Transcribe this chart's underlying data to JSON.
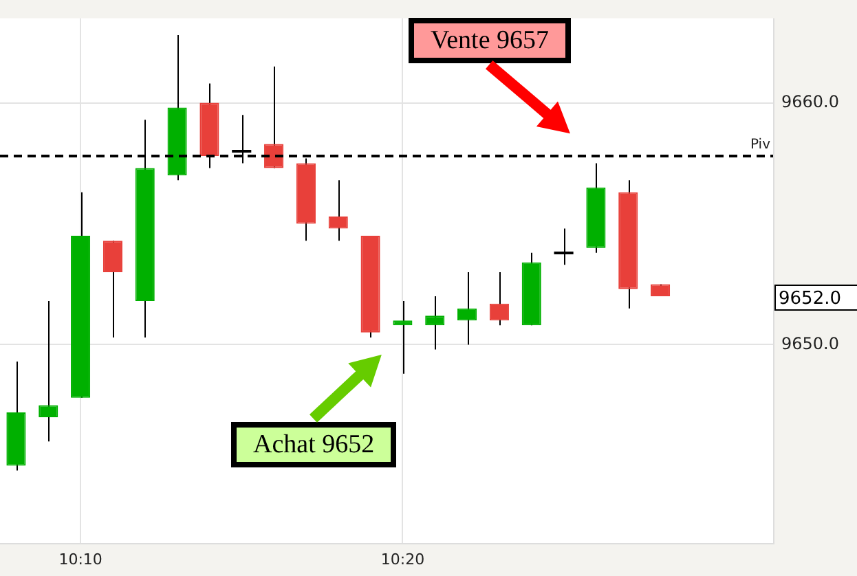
{
  "chart_data": {
    "type": "candlestick",
    "categories": [
      null,
      null,
      "10:10",
      null,
      null,
      null,
      null,
      null,
      null,
      null,
      null,
      null,
      "10:20",
      null,
      null,
      null,
      null,
      null,
      null,
      null,
      null,
      null,
      null,
      null
    ],
    "ohlc": [
      [
        9645.0,
        9649.3,
        9644.8,
        9647.2
      ],
      [
        9647.0,
        9651.8,
        9646.0,
        9647.5
      ],
      [
        9647.8,
        9656.3,
        9647.8,
        9654.5
      ],
      [
        9654.3,
        9654.3,
        9650.3,
        9653.0
      ],
      [
        9651.8,
        9659.3,
        9650.3,
        9657.3
      ],
      [
        9657.0,
        9662.8,
        9656.8,
        9659.8
      ],
      [
        9660.0,
        9660.8,
        9657.3,
        9657.8
      ],
      [
        9658.0,
        9659.5,
        9657.5,
        9658.0
      ],
      [
        9658.3,
        9661.5,
        9657.3,
        9657.3
      ],
      [
        9657.5,
        9657.7,
        9654.3,
        9655.0
      ],
      [
        9655.3,
        9656.8,
        9654.3,
        9654.8
      ],
      [
        9654.5,
        9654.5,
        9650.3,
        9650.5
      ],
      [
        9650.8,
        9651.8,
        9648.8,
        9651.0
      ],
      [
        9650.8,
        9652.0,
        9649.8,
        9651.2
      ],
      [
        9651.0,
        9653.0,
        9650.0,
        9651.5
      ],
      [
        9651.7,
        9653.0,
        9650.8,
        9651.0
      ],
      [
        9650.8,
        9653.8,
        9650.8,
        9653.4
      ],
      [
        9653.8,
        9654.8,
        9653.3,
        9653.8
      ],
      [
        9654.0,
        9657.5,
        9653.8,
        9656.5
      ],
      [
        9656.3,
        9656.8,
        9651.5,
        9652.3
      ],
      [
        9652.5,
        9652.5,
        9652.0,
        9652.0
      ],
      null,
      null,
      null
    ],
    "colors": [
      "#00b000",
      "#00b000",
      "#00b000",
      "#e8403a",
      "#00b000",
      "#00b000",
      "#e8403a",
      "#000000",
      "#e8403a",
      "#e8403a",
      "#e8403a",
      "#e8403a",
      "#00b000",
      "#00b000",
      "#00b000",
      "#e8403a",
      "#00b000",
      "#000000",
      "#00b000",
      "#e8403a",
      "#e8403a",
      null,
      null,
      null
    ],
    "ylim": [
      9641.8,
      9663.5
    ],
    "yticks": [
      {
        "value": 9650,
        "label": "9650.0"
      },
      {
        "value": 9660,
        "label": "9660.0"
      }
    ],
    "grid": true,
    "ref_lines": [
      {
        "axis": "y",
        "value": 9657.8,
        "label": "Piv",
        "color": "#000000",
        "line_style": "dashed"
      }
    ],
    "annotations": [
      "Vente 9657",
      "Achat 9652",
      "9652.0"
    ]
  }
}
